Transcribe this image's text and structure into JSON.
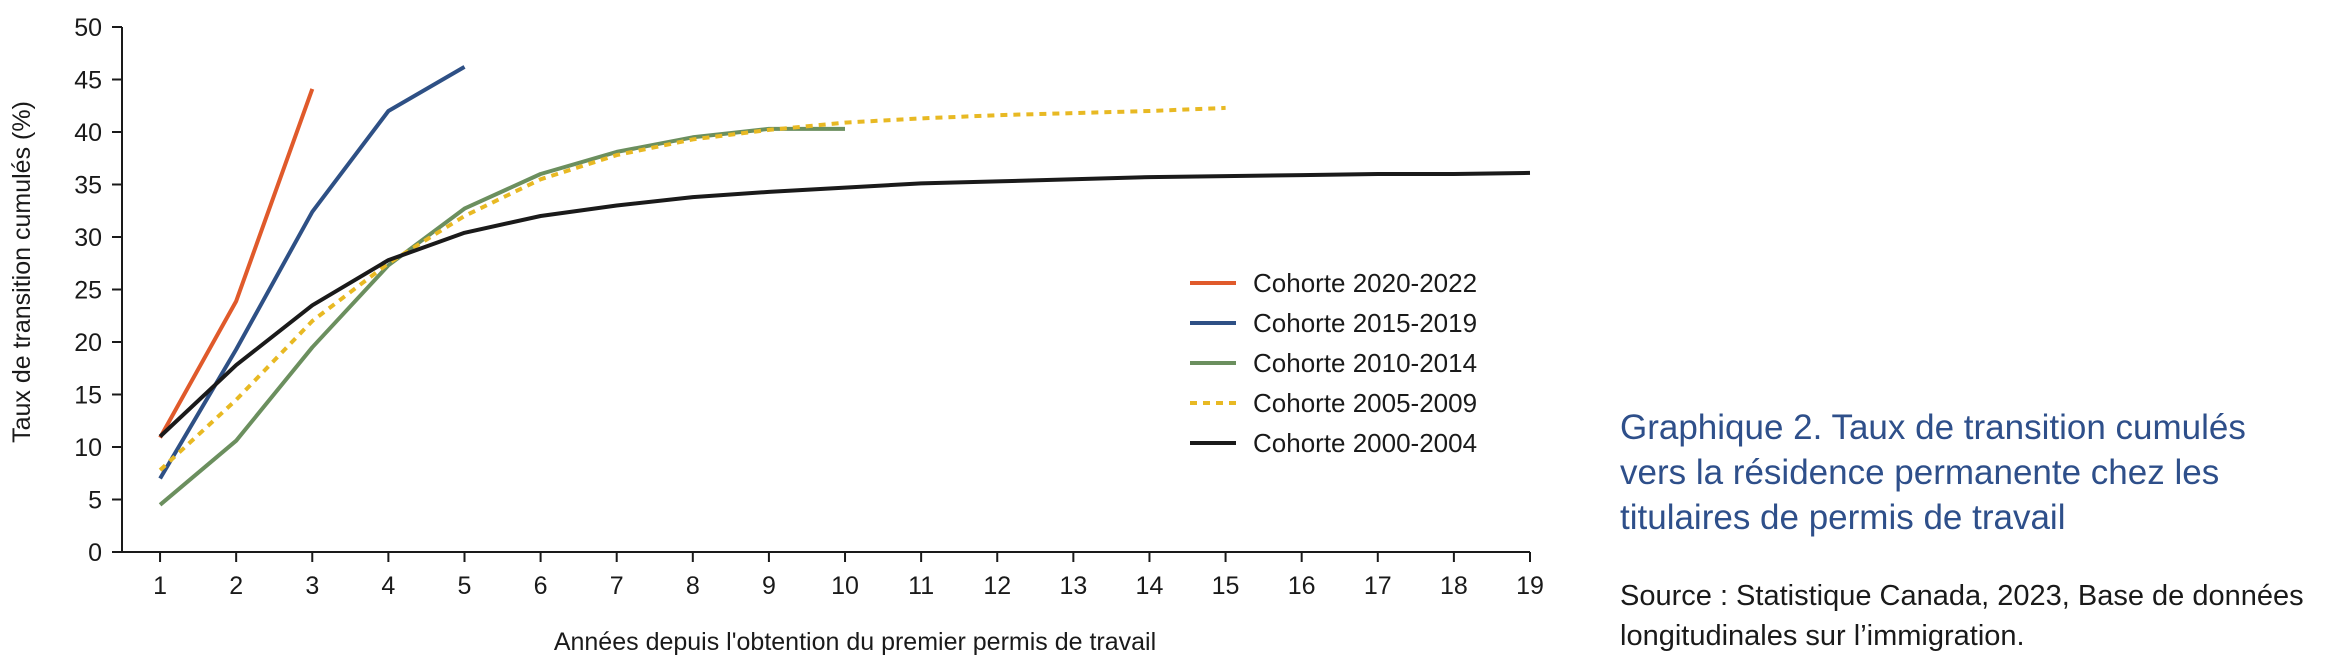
{
  "chart_data": {
    "type": "line",
    "title": "Graphique 2. Taux de transition cumulés vers la résidence permanente chez les titulaires de permis de travail",
    "source": "Source : Statistique Canada, 2023, Base de données longitudinales sur l’immigration.",
    "xlabel": "Années depuis l'obtention du premier permis de travail",
    "ylabel": "Taux de transition cumulés (%)",
    "xlim": [
      0.5,
      19
    ],
    "ylim": [
      0,
      50
    ],
    "xticks": [
      "1",
      "2",
      "3",
      "4",
      "5",
      "6",
      "7",
      "8",
      "9",
      "10",
      "11",
      "12",
      "13",
      "14",
      "15",
      "16",
      "17",
      "18",
      "19"
    ],
    "yticks": [
      "0",
      "5",
      "10",
      "15",
      "20",
      "25",
      "30",
      "35",
      "40",
      "45",
      "50"
    ],
    "grid": false,
    "legend_position": "center-right",
    "series": [
      {
        "name": "Cohorte 2020-2022",
        "color": "#e05a2b",
        "dash": "solid",
        "x": [
          1,
          2,
          3
        ],
        "y": [
          10.9,
          23.9,
          44.1
        ]
      },
      {
        "name": "Cohorte 2015-2019",
        "color": "#2e5085",
        "dash": "solid",
        "x": [
          1,
          2,
          3,
          4,
          5
        ],
        "y": [
          7.0,
          19.3,
          32.4,
          42.0,
          46.2
        ]
      },
      {
        "name": "Cohorte 2010-2014",
        "color": "#6b8f5e",
        "dash": "solid",
        "x": [
          1,
          2,
          3,
          4,
          5,
          6,
          7,
          8,
          9,
          10
        ],
        "y": [
          4.5,
          10.6,
          19.5,
          27.3,
          32.7,
          36.0,
          38.1,
          39.5,
          40.3,
          40.3
        ]
      },
      {
        "name": "Cohorte 2005-2009",
        "color": "#e8b923",
        "dash": "dotted",
        "x": [
          1,
          2,
          3,
          4,
          5,
          6,
          7,
          8,
          9,
          10,
          11,
          12,
          13,
          14,
          15
        ],
        "y": [
          7.8,
          14.5,
          22.0,
          27.5,
          32.0,
          35.5,
          37.8,
          39.3,
          40.2,
          40.9,
          41.3,
          41.6,
          41.8,
          42.0,
          42.3
        ]
      },
      {
        "name": "Cohorte 2000-2004",
        "color": "#1a1a1a",
        "dash": "solid",
        "x": [
          1,
          2,
          3,
          4,
          5,
          6,
          7,
          8,
          9,
          10,
          11,
          12,
          13,
          14,
          15,
          16,
          17,
          18,
          19
        ],
        "y": [
          11.0,
          17.8,
          23.5,
          27.8,
          30.4,
          32.0,
          33.0,
          33.8,
          34.3,
          34.7,
          35.1,
          35.3,
          35.5,
          35.7,
          35.8,
          35.9,
          36.0,
          36.0,
          36.1
        ]
      }
    ]
  }
}
